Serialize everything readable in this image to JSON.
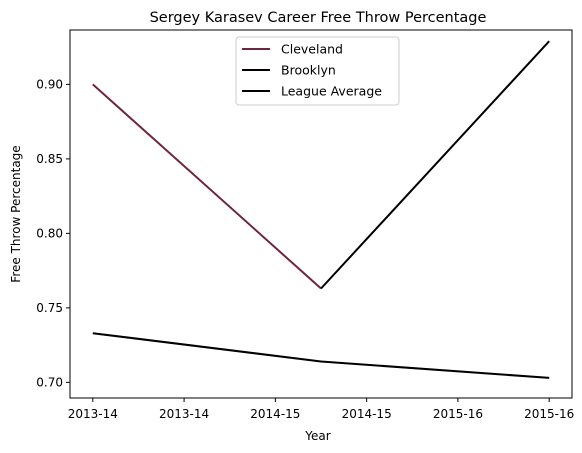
{
  "chart_data": {
    "type": "line",
    "title": "Sergey Karasev Career Free Throw Percentage",
    "xlabel": "Year",
    "ylabel": "Free Throw Percentage",
    "x_ticks": [
      "2013-14",
      "2013-14",
      "2014-15",
      "2014-15",
      "2015-16",
      "2015-16"
    ],
    "y_ticks": [
      "0.70",
      "0.75",
      "0.80",
      "0.85",
      "0.90"
    ],
    "xlim": [
      -0.1,
      2.1
    ],
    "ylim": [
      0.6895,
      0.9365
    ],
    "grid": false,
    "legend_position": "upper center",
    "series": [
      {
        "name": "Cleveland",
        "color": "#6f263d",
        "x": [
          0,
          1
        ],
        "y": [
          0.9,
          0.763
        ]
      },
      {
        "name": "Brooklyn",
        "color": "#000000",
        "x": [
          1,
          2
        ],
        "y": [
          0.763,
          0.929
        ]
      },
      {
        "name": "League Average",
        "color": "#000000",
        "x": [
          0,
          1,
          2
        ],
        "y": [
          0.733,
          0.714,
          0.703
        ]
      }
    ]
  }
}
